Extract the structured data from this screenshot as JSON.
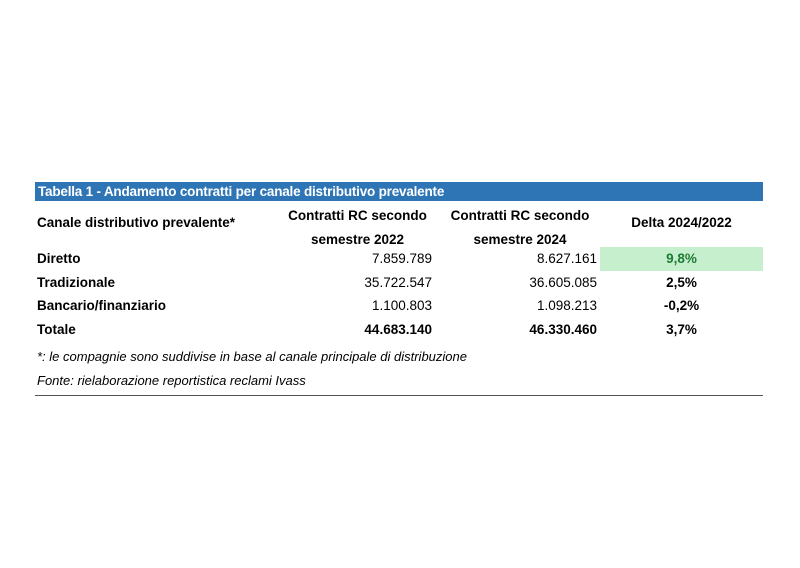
{
  "table": {
    "title": "Tabella 1 - Andamento contratti per canale distributivo prevalente",
    "headers": {
      "col1": "Canale distributivo prevalente*",
      "col2_line1": "Contratti RC secondo",
      "col2_line2": "semestre 2022",
      "col3_line1": "Contratti RC secondo",
      "col3_line2": "semestre 2024",
      "col4": "Delta 2024/2022"
    },
    "rows": [
      {
        "canale": "Diretto",
        "v2022": "7.859.789",
        "v2024": "8.627.161",
        "delta": "9,8%"
      },
      {
        "canale": "Tradizionale",
        "v2022": "35.722.547",
        "v2024": "36.605.085",
        "delta": "2,5%"
      },
      {
        "canale": "Bancario/finanziario",
        "v2022": "1.100.803",
        "v2024": "1.098.213",
        "delta": "-0,2%"
      },
      {
        "canale": "Totale",
        "v2022": "44.683.140",
        "v2024": "46.330.460",
        "delta": "3,7%"
      }
    ],
    "notes": [
      "*: le compagnie sono suddivise in base al canale principale di distribuzione",
      "Fonte: rielaborazione reportistica reclami Ivass"
    ],
    "colors": {
      "title_bg": "#2e75b6",
      "highlight_bg": "#c6efce",
      "highlight_text": "#1e7b34"
    }
  }
}
